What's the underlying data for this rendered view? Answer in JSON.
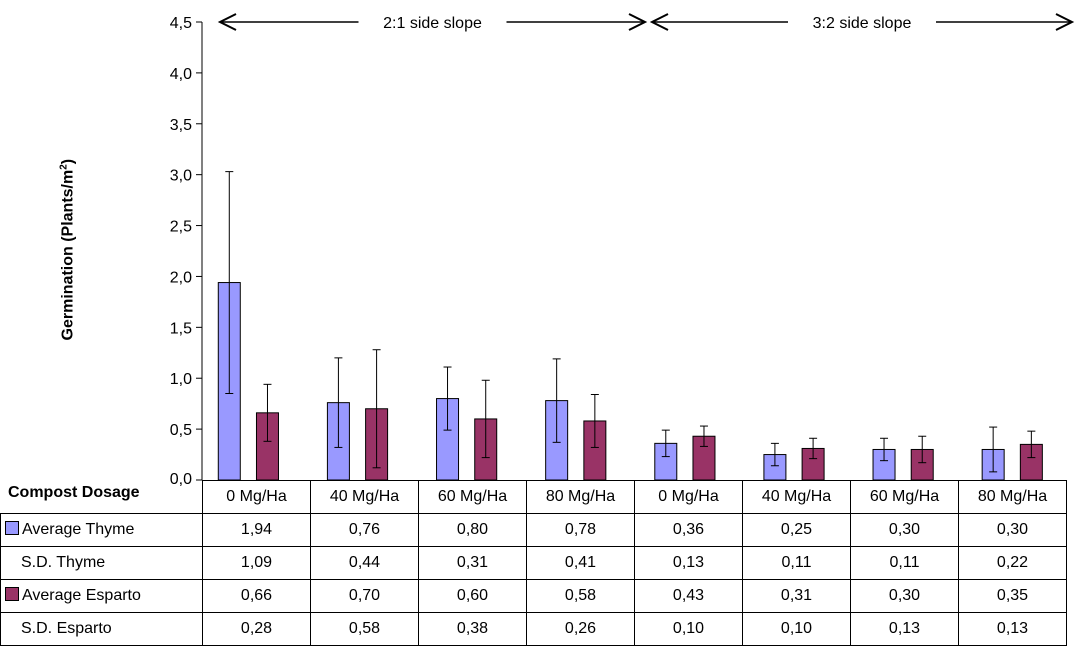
{
  "chart_data": {
    "type": "bar",
    "ylabel": "Germination (Plants/m",
    "ylabel_sup": "2",
    "ylabel_end": ")",
    "ylim": [
      0,
      4.5
    ],
    "yticks": [
      "0,0",
      "0,5",
      "1,0",
      "1,5",
      "2,0",
      "2,5",
      "3,0",
      "3,5",
      "4,0",
      "4,5"
    ],
    "ytick_values": [
      0,
      0.5,
      1.0,
      1.5,
      2.0,
      2.5,
      3.0,
      3.5,
      4.0,
      4.5
    ],
    "categories": [
      "0 Mg/Ha",
      "40 Mg/Ha",
      "60 Mg/Ha",
      "80 Mg/Ha",
      "0 Mg/Ha",
      "40 Mg/Ha",
      "60 Mg/Ha",
      "80 Mg/Ha"
    ],
    "series": [
      {
        "name": "Average Thyme",
        "values": [
          1.94,
          0.76,
          0.8,
          0.78,
          0.36,
          0.25,
          0.3,
          0.3
        ],
        "sd": [
          1.09,
          0.44,
          0.31,
          0.41,
          0.13,
          0.11,
          0.11,
          0.22
        ],
        "color": "#9999ff"
      },
      {
        "name": "Average Esparto",
        "values": [
          0.66,
          0.7,
          0.6,
          0.58,
          0.43,
          0.31,
          0.3,
          0.35
        ],
        "sd": [
          0.28,
          0.58,
          0.38,
          0.26,
          0.1,
          0.1,
          0.13,
          0.13
        ],
        "color": "#993366"
      }
    ],
    "annotations": [
      "2:1 side slope",
      "3:2 side slope"
    ],
    "grid": false,
    "legend": "data table"
  },
  "table": {
    "corner_label": "Compost Dosage",
    "rows": [
      {
        "label": "Average Thyme",
        "swatch": "#9999ff",
        "cells": [
          "1,94",
          "0,76",
          "0,80",
          "0,78",
          "0,36",
          "0,25",
          "0,30",
          "0,30"
        ]
      },
      {
        "label": "S.D. Thyme",
        "swatch": "",
        "cells": [
          "1,09",
          "0,44",
          "0,31",
          "0,41",
          "0,13",
          "0,11",
          "0,11",
          "0,22"
        ]
      },
      {
        "label": "Average Esparto",
        "swatch": "#993366",
        "cells": [
          "0,66",
          "0,70",
          "0,60",
          "0,58",
          "0,43",
          "0,31",
          "0,30",
          "0,35"
        ]
      },
      {
        "label": "S.D. Esparto",
        "swatch": "",
        "cells": [
          "0,28",
          "0,58",
          "0,38",
          "0,26",
          "0,10",
          "0,10",
          "0,13",
          "0,13"
        ]
      }
    ]
  }
}
